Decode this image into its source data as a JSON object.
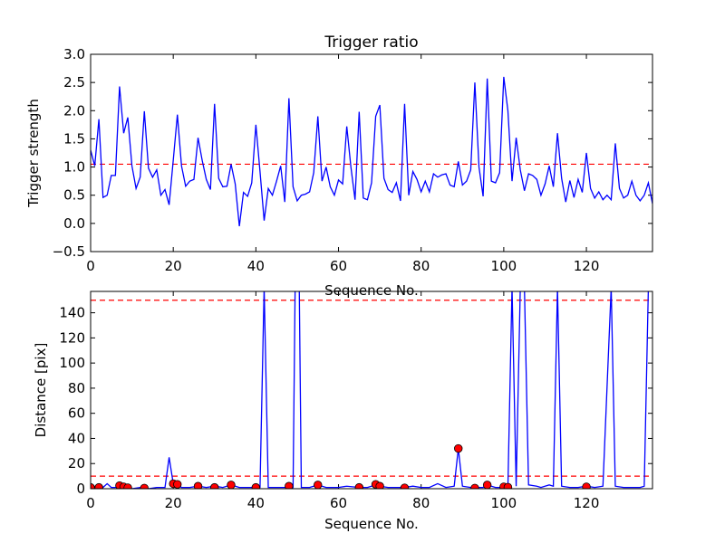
{
  "chart_data": [
    {
      "type": "line",
      "title": "Trigger ratio",
      "xlabel": "Sequence No.",
      "ylabel": "Trigger strength",
      "xlim": [
        0,
        136
      ],
      "ylim": [
        -0.5,
        3.0
      ],
      "xticks": [
        0,
        20,
        40,
        60,
        80,
        100,
        120
      ],
      "yticks": [
        -0.5,
        0.0,
        0.5,
        1.0,
        1.5,
        2.0,
        2.5,
        3.0
      ],
      "ytick_labels": [
        "−0.5",
        "0.0",
        "0.5",
        "1.0",
        "1.5",
        "2.0",
        "2.5",
        "3.0"
      ],
      "grid": false,
      "line_color": "#0000ff",
      "threshold": {
        "value": 1.05,
        "color": "#ff0000",
        "style": "dashed"
      },
      "x_start": 0,
      "values": [
        1.3,
        1.02,
        1.85,
        0.46,
        0.5,
        0.85,
        0.85,
        2.43,
        1.6,
        1.88,
        1.02,
        0.62,
        0.82,
        1.99,
        0.98,
        0.82,
        0.95,
        0.5,
        0.6,
        0.33,
        1.12,
        1.93,
        1.02,
        0.66,
        0.75,
        0.78,
        1.52,
        1.12,
        0.78,
        0.6,
        2.12,
        0.8,
        0.65,
        0.66,
        1.05,
        0.7,
        -0.05,
        0.55,
        0.48,
        0.72,
        1.75,
        0.92,
        0.05,
        0.62,
        0.5,
        0.75,
        1.02,
        0.38,
        2.22,
        0.65,
        0.4,
        0.5,
        0.52,
        0.56,
        0.9,
        1.9,
        0.75,
        1.0,
        0.65,
        0.5,
        0.77,
        0.7,
        1.72,
        1.0,
        0.42,
        1.98,
        0.45,
        0.42,
        0.72,
        1.9,
        2.1,
        0.8,
        0.6,
        0.55,
        0.72,
        0.4,
        2.12,
        0.5,
        0.92,
        0.78,
        0.56,
        0.75,
        0.56,
        0.88,
        0.82,
        0.86,
        0.88,
        0.68,
        0.65,
        1.1,
        0.68,
        0.75,
        0.95,
        2.5,
        1.0,
        0.48,
        2.57,
        0.75,
        0.72,
        0.9,
        2.6,
        2.0,
        0.75,
        1.52,
        0.95,
        0.58,
        0.88,
        0.85,
        0.78,
        0.5,
        0.7,
        1.02,
        0.65,
        1.6,
        0.8,
        0.38,
        0.76,
        0.46,
        0.78,
        0.55,
        1.25,
        0.62,
        0.45,
        0.56,
        0.42,
        0.5,
        0.42,
        1.42,
        0.62,
        0.45,
        0.5,
        0.75,
        0.5,
        0.4,
        0.5,
        0.72,
        0.35
      ]
    },
    {
      "type": "line",
      "title": "",
      "xlabel": "Sequence No.",
      "ylabel": "Distance [pix]",
      "xlim": [
        0,
        136
      ],
      "ylim": [
        0,
        157
      ],
      "xticks": [
        0,
        20,
        40,
        60,
        80,
        100,
        120
      ],
      "yticks": [
        0,
        20,
        40,
        60,
        80,
        100,
        120,
        140
      ],
      "grid": false,
      "line_color": "#0000ff",
      "marker_color": "#ff0000",
      "thresholds": [
        {
          "value": 150,
          "color": "#ff0000",
          "style": "dashed"
        },
        {
          "value": 10,
          "color": "#ff0000",
          "style": "dashed"
        }
      ],
      "line_points": [
        [
          0,
          1
        ],
        [
          1,
          1
        ],
        [
          2,
          0
        ],
        [
          3,
          1
        ],
        [
          4,
          4
        ],
        [
          5,
          1
        ],
        [
          6,
          1
        ],
        [
          7,
          2
        ],
        [
          8,
          1
        ],
        [
          9,
          1
        ],
        [
          10,
          0
        ],
        [
          12,
          1
        ],
        [
          14,
          0
        ],
        [
          16,
          1
        ],
        [
          18,
          1
        ],
        [
          19,
          25
        ],
        [
          20,
          4
        ],
        [
          21,
          3
        ],
        [
          22,
          1
        ],
        [
          24,
          1
        ],
        [
          26,
          2
        ],
        [
          28,
          1
        ],
        [
          30,
          2
        ],
        [
          32,
          1
        ],
        [
          34,
          3
        ],
        [
          36,
          1
        ],
        [
          38,
          1
        ],
        [
          40,
          1
        ],
        [
          41,
          1
        ],
        [
          42,
          160
        ],
        [
          43,
          1
        ],
        [
          45,
          1
        ],
        [
          47,
          1
        ],
        [
          48,
          2
        ],
        [
          49,
          1
        ],
        [
          49.5,
          160
        ],
        [
          50.5,
          160
        ],
        [
          51,
          1
        ],
        [
          53,
          1
        ],
        [
          55,
          3
        ],
        [
          57,
          1
        ],
        [
          60,
          1
        ],
        [
          62,
          2
        ],
        [
          65,
          1
        ],
        [
          67,
          1
        ],
        [
          69,
          3
        ],
        [
          70,
          2
        ],
        [
          72,
          1
        ],
        [
          74,
          1
        ],
        [
          76,
          1
        ],
        [
          78,
          2
        ],
        [
          80,
          1
        ],
        [
          82,
          1
        ],
        [
          84,
          4
        ],
        [
          86,
          1
        ],
        [
          88,
          2
        ],
        [
          89,
          32
        ],
        [
          90,
          2
        ],
        [
          92,
          1
        ],
        [
          93,
          1
        ],
        [
          95,
          1
        ],
        [
          96,
          3
        ],
        [
          98,
          1
        ],
        [
          100,
          1
        ],
        [
          101,
          1
        ],
        [
          102,
          160
        ],
        [
          103,
          2
        ],
        [
          104,
          160
        ],
        [
          105,
          160
        ],
        [
          106,
          3
        ],
        [
          108,
          2
        ],
        [
          109,
          1
        ],
        [
          111,
          3
        ],
        [
          112,
          2
        ],
        [
          113,
          160
        ],
        [
          114,
          2
        ],
        [
          116,
          1
        ],
        [
          118,
          1
        ],
        [
          120,
          2
        ],
        [
          122,
          1
        ],
        [
          124,
          2
        ],
        [
          126,
          160
        ],
        [
          127,
          2
        ],
        [
          129,
          1
        ],
        [
          131,
          1
        ],
        [
          133,
          1
        ],
        [
          134,
          2
        ],
        [
          135,
          160
        ],
        [
          136,
          160
        ]
      ],
      "markers": [
        [
          0,
          1
        ],
        [
          2,
          1
        ],
        [
          7,
          2.5
        ],
        [
          8,
          1.5
        ],
        [
          9,
          0.8
        ],
        [
          13,
          0.5
        ],
        [
          20,
          4
        ],
        [
          21,
          3.5
        ],
        [
          26,
          2
        ],
        [
          30,
          1
        ],
        [
          34,
          3
        ],
        [
          40,
          1
        ],
        [
          48,
          2
        ],
        [
          55,
          3
        ],
        [
          65,
          1
        ],
        [
          69,
          3.5
        ],
        [
          70,
          2
        ],
        [
          76,
          0.7
        ],
        [
          89,
          32
        ],
        [
          93,
          0.5
        ],
        [
          96,
          3
        ],
        [
          100,
          1.5
        ],
        [
          101,
          1.2
        ],
        [
          120,
          1.5
        ]
      ]
    }
  ]
}
